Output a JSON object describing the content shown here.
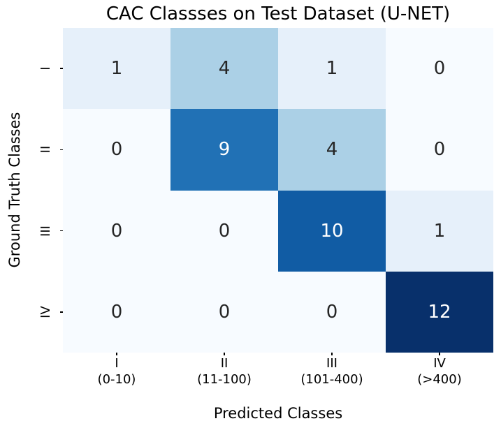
{
  "figure": {
    "background": "#ffffff"
  },
  "chart_data": {
    "type": "heatmap",
    "title": "CAC Classses on Test Dataset (U-NET)",
    "xlabel": "Predicted Classes",
    "ylabel": "Ground Truth Classes",
    "x_tick_labels": [
      {
        "numeral": "I",
        "range": "(0-10)"
      },
      {
        "numeral": "II",
        "range": "(11-100)"
      },
      {
        "numeral": "III",
        "range": "(101-400)"
      },
      {
        "numeral": "IV",
        "range": "(>400)"
      }
    ],
    "y_tick_labels": [
      "I",
      "II",
      "III",
      "IV"
    ],
    "matrix": [
      [
        1,
        4,
        1,
        0
      ],
      [
        0,
        9,
        4,
        0
      ],
      [
        0,
        0,
        10,
        1
      ],
      [
        0,
        0,
        0,
        12
      ]
    ],
    "vmin": 0,
    "vmax": 12,
    "colormap": "Blues",
    "value_colors": {
      "0": "#f7fbff",
      "1": "#e6f0fa",
      "4": "#abd0e6",
      "9": "#2171b5",
      "10": "#115ca4",
      "12": "#08306b"
    },
    "white_text_min_value": 9,
    "annotation_dark_color": "#262626",
    "annotation_light_color": "#ffffff",
    "tick_color": "#000000",
    "grid": false,
    "legend": "none"
  }
}
